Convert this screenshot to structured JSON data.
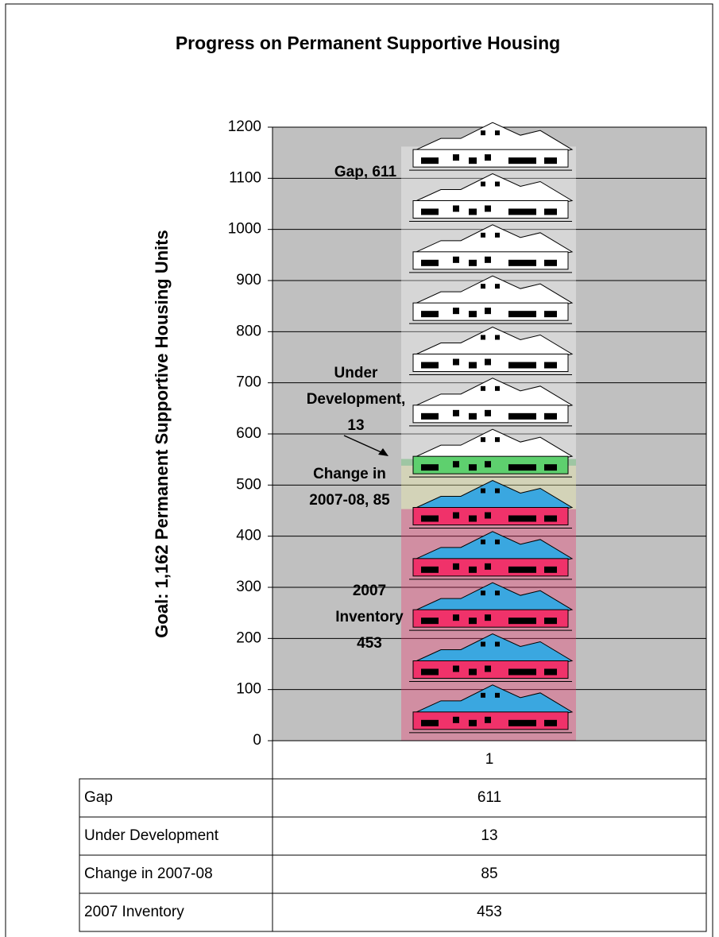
{
  "chart_data": {
    "type": "stacked_bar",
    "title": "Progress on Permanent Supportive Housing",
    "y_label": "Goal: 1,162 Permanent Supportive Housing Units",
    "categories": [
      "1"
    ],
    "series": [
      {
        "name": "Gap",
        "color": "#ffffff",
        "values": [
          611
        ]
      },
      {
        "name": "Under Development",
        "color": "#5ed06e",
        "values": [
          13
        ]
      },
      {
        "name": "Change in 2007-08",
        "color": "#f7f7a8",
        "values": [
          85
        ]
      },
      {
        "name": "2007 Inventory",
        "color": "#f0326a",
        "values": [
          453
        ]
      }
    ],
    "ylim": [
      0,
      1200
    ],
    "yticks": [
      0,
      100,
      200,
      300,
      400,
      500,
      600,
      700,
      800,
      900,
      1000,
      1100,
      1200
    ],
    "grid": true,
    "data_table": true
  }
}
